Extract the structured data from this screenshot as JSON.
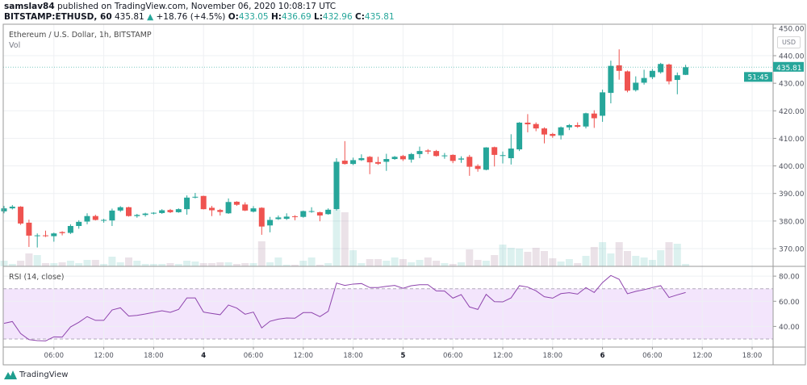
{
  "header": {
    "author": "samslav84",
    "published": "published on TradingView.com, November 06, 2020 10:08:17 UTC",
    "symbol": "BITSTAMP:ETHUSD, 60",
    "last": "435.81",
    "change": "+18.76 (+4.5%)",
    "o_label": "O:",
    "o": "433.05",
    "h_label": "H:",
    "h": "436.69",
    "l_label": "L:",
    "l": "432.96",
    "c_label": "C:",
    "c": "435.81"
  },
  "legend": {
    "title": "Ethereum / U.S. Dollar, 1h, BITSTAMP",
    "volume": "Vol"
  },
  "rsi": {
    "title": "RSI (14, close)"
  },
  "axis": {
    "currency": "USD",
    "last_price_label": "435.81",
    "countdown": "51:45",
    "price_ticks": [
      "450.00",
      "440.00",
      "430.00",
      "420.00",
      "410.00",
      "400.00",
      "390.00",
      "380.00",
      "370.00"
    ],
    "rsi_ticks": [
      "80.00",
      "60.00",
      "40.00"
    ]
  },
  "brand": {
    "name": "TradingView"
  },
  "colors": {
    "up": "#26a69a",
    "down": "#ef5350",
    "rsi_line": "#8e44ad",
    "rsi_band": "#f3e5fc"
  },
  "chart_data": {
    "type": "candlestick",
    "interval": "1h",
    "x_ticks": [
      {
        "hour": 6,
        "label": "06:00"
      },
      {
        "hour": 12,
        "label": "12:00"
      },
      {
        "hour": 18,
        "label": "18:00"
      },
      {
        "hour": 24,
        "label": "4"
      },
      {
        "hour": 30,
        "label": "06:00"
      },
      {
        "hour": 36,
        "label": "12:00"
      },
      {
        "hour": 42,
        "label": "18:00"
      },
      {
        "hour": 48,
        "label": "5"
      },
      {
        "hour": 54,
        "label": "06:00"
      },
      {
        "hour": 60,
        "label": "12:00"
      },
      {
        "hour": 66,
        "label": "18:00"
      },
      {
        "hour": 72,
        "label": "6"
      },
      {
        "hour": 78,
        "label": "06:00"
      },
      {
        "hour": 84,
        "label": "12:00"
      },
      {
        "hour": 90,
        "label": "18:00"
      }
    ],
    "price_range": [
      360,
      450
    ],
    "rsi_range": [
      20,
      90
    ],
    "rsi_bands": [
      30,
      70
    ],
    "ohlc": [
      [
        383.5,
        385.5,
        382.8,
        384.6
      ],
      [
        384.6,
        385.8,
        384.2,
        385.2
      ],
      [
        385.2,
        385.4,
        378.6,
        379.1
      ],
      [
        379.4,
        380.5,
        370.6,
        374.7
      ],
      [
        374.7,
        375.5,
        370.4,
        374.8
      ],
      [
        374.8,
        376.5,
        374.2,
        374.5
      ],
      [
        374.5,
        375.8,
        372.5,
        375.5
      ],
      [
        376,
        376.3,
        374.8,
        375.6
      ],
      [
        375.7,
        378.8,
        375.3,
        378.2
      ],
      [
        378.2,
        380.3,
        377.2,
        379.7
      ],
      [
        379.8,
        382.8,
        378.8,
        381.8
      ],
      [
        381.8,
        382.3,
        380.2,
        380.4
      ],
      [
        380.2,
        380.8,
        379.4,
        380.4
      ],
      [
        380.2,
        384.5,
        378.2,
        383.8
      ],
      [
        383.8,
        385.4,
        383.3,
        385
      ],
      [
        385,
        385.2,
        381.6,
        381.8
      ],
      [
        381.8,
        382.6,
        381.2,
        382.2
      ],
      [
        382.2,
        383,
        381.6,
        382.7
      ],
      [
        382.7,
        383.2,
        382.4,
        383
      ],
      [
        382.9,
        384.3,
        382.6,
        383.9
      ],
      [
        384,
        384.4,
        382.9,
        383.2
      ],
      [
        383.2,
        384.6,
        383,
        384.3
      ],
      [
        384.3,
        389.3,
        382.3,
        388.5
      ],
      [
        388.5,
        390.2,
        388.2,
        388.8
      ],
      [
        389.1,
        389.2,
        384.2,
        384.3
      ],
      [
        384.8,
        385.5,
        381.8,
        383.9
      ],
      [
        384,
        384.4,
        382,
        383.3
      ],
      [
        382.8,
        388.2,
        382.6,
        386.9
      ],
      [
        387,
        387.2,
        385.5,
        385.9
      ],
      [
        386,
        386.8,
        383.6,
        383.8
      ],
      [
        383.4,
        385.4,
        383.1,
        384.6
      ],
      [
        384.8,
        385,
        375,
        378
      ],
      [
        378.4,
        381.5,
        375.9,
        380.4
      ],
      [
        380.7,
        382,
        380.4,
        381.3
      ],
      [
        380.8,
        382.8,
        380.4,
        381.6
      ],
      [
        381.7,
        382.1,
        380.3,
        381.5
      ],
      [
        381.5,
        383.8,
        381.2,
        383.6
      ],
      [
        383.4,
        385,
        383,
        383.6
      ],
      [
        383.2,
        383.4,
        379.9,
        382
      ],
      [
        382.5,
        384.6,
        382.3,
        384.1
      ],
      [
        384.3,
        402.8,
        383.8,
        401.5
      ],
      [
        401.9,
        409,
        400.5,
        400.7
      ],
      [
        400.7,
        403,
        400.3,
        402.1
      ],
      [
        402.1,
        404.2,
        401.8,
        402.8
      ],
      [
        403.3,
        403.6,
        397,
        401.3
      ],
      [
        401.4,
        403.3,
        400.4,
        400.8
      ],
      [
        401.5,
        404.4,
        398.2,
        402.5
      ],
      [
        402.5,
        403.6,
        402.2,
        403.3
      ],
      [
        403.6,
        404,
        401.8,
        402.4
      ],
      [
        402.3,
        404.7,
        401.2,
        404.3
      ],
      [
        404.3,
        407,
        402.8,
        405.4
      ],
      [
        405.6,
        406.1,
        404.3,
        405.2
      ],
      [
        405.4,
        405.8,
        403.4,
        403.6
      ],
      [
        403.6,
        404.7,
        402.6,
        403.8
      ],
      [
        404,
        404.2,
        401,
        401.8
      ],
      [
        402.3,
        403.5,
        401.1,
        402.7
      ],
      [
        403.3,
        404,
        396.4,
        399.7
      ],
      [
        400,
        400.6,
        397.9,
        398.9
      ],
      [
        398.6,
        406.8,
        398.4,
        406.7
      ],
      [
        406.8,
        407,
        399.8,
        404
      ],
      [
        403.6,
        405.2,
        400.9,
        403.9
      ],
      [
        402.8,
        411.5,
        400.5,
        406.3
      ],
      [
        406,
        415.9,
        405.4,
        415.7
      ],
      [
        415.7,
        418.8,
        412.2,
        415.1
      ],
      [
        415.2,
        415.8,
        412.6,
        413.6
      ],
      [
        413.6,
        414,
        408.2,
        411.4
      ],
      [
        411.6,
        412,
        410.2,
        410.9
      ],
      [
        411.1,
        414.3,
        409.6,
        414
      ],
      [
        414,
        415.2,
        413,
        414.8
      ],
      [
        414.8,
        415.8,
        413.8,
        414.2
      ],
      [
        414.3,
        419.3,
        413.6,
        419.1
      ],
      [
        419,
        420.2,
        413.8,
        417.3
      ],
      [
        418.2,
        427.7,
        416,
        426.7
      ],
      [
        426.5,
        438.2,
        422.7,
        436.3
      ],
      [
        436.5,
        442.3,
        431.3,
        434.5
      ],
      [
        434.3,
        434.6,
        426.7,
        427.3
      ],
      [
        427.5,
        432.5,
        427,
        430.2
      ],
      [
        430.2,
        434.9,
        429.5,
        431.9
      ],
      [
        432.2,
        435.2,
        431.5,
        434.5
      ],
      [
        434,
        437.4,
        433.5,
        437
      ],
      [
        436.8,
        437.1,
        429.6,
        430.7
      ],
      [
        431.2,
        433.9,
        426,
        432.9
      ],
      [
        433.05,
        436.69,
        432.96,
        435.81
      ]
    ],
    "volume_relative": [
      7,
      3,
      7,
      16,
      14,
      4,
      4,
      5,
      7,
      4,
      8,
      8,
      3,
      12,
      5,
      11,
      7,
      3,
      3,
      3,
      4,
      3,
      7,
      6,
      4,
      4,
      5,
      5,
      3,
      4,
      4,
      31,
      5,
      11,
      2,
      2,
      7,
      11,
      2,
      4,
      70,
      67,
      20,
      4,
      9,
      9,
      7,
      11,
      9,
      5,
      8,
      11,
      7,
      4,
      3,
      5,
      21,
      8,
      7,
      14,
      27,
      23,
      22,
      18,
      23,
      19,
      10,
      6,
      9,
      4,
      13,
      24,
      30,
      16,
      30,
      19,
      13,
      11,
      8,
      20,
      30,
      28,
      3
    ],
    "rsi": [
      42.4,
      43.9,
      34.3,
      29.5,
      28.7,
      28.5,
      31.7,
      31.5,
      39.6,
      43.3,
      47.8,
      44.8,
      44.8,
      53.1,
      54.8,
      48.2,
      48.8,
      49.9,
      51.2,
      52.5,
      51.2,
      53.5,
      62.7,
      62.7,
      51.4,
      50.3,
      49.3,
      57,
      54.6,
      49.7,
      51.4,
      38.8,
      44.1,
      45.8,
      46.7,
      46.5,
      51,
      51,
      47.8,
      52,
      74.5,
      72.6,
      73.7,
      74.1,
      70.9,
      70.9,
      71.9,
      72.6,
      70.3,
      72.4,
      73.2,
      73.2,
      68.3,
      68.1,
      62.5,
      65.3,
      55.5,
      53.5,
      65.5,
      59.7,
      59.5,
      62.7,
      72.4,
      71.3,
      68.3,
      63.6,
      62.5,
      66.1,
      66.8,
      65.7,
      70.9,
      67,
      74.9,
      80.5,
      77.5,
      66,
      67.9,
      69.2,
      70.9,
      72.4,
      63,
      65.1,
      67
    ]
  }
}
